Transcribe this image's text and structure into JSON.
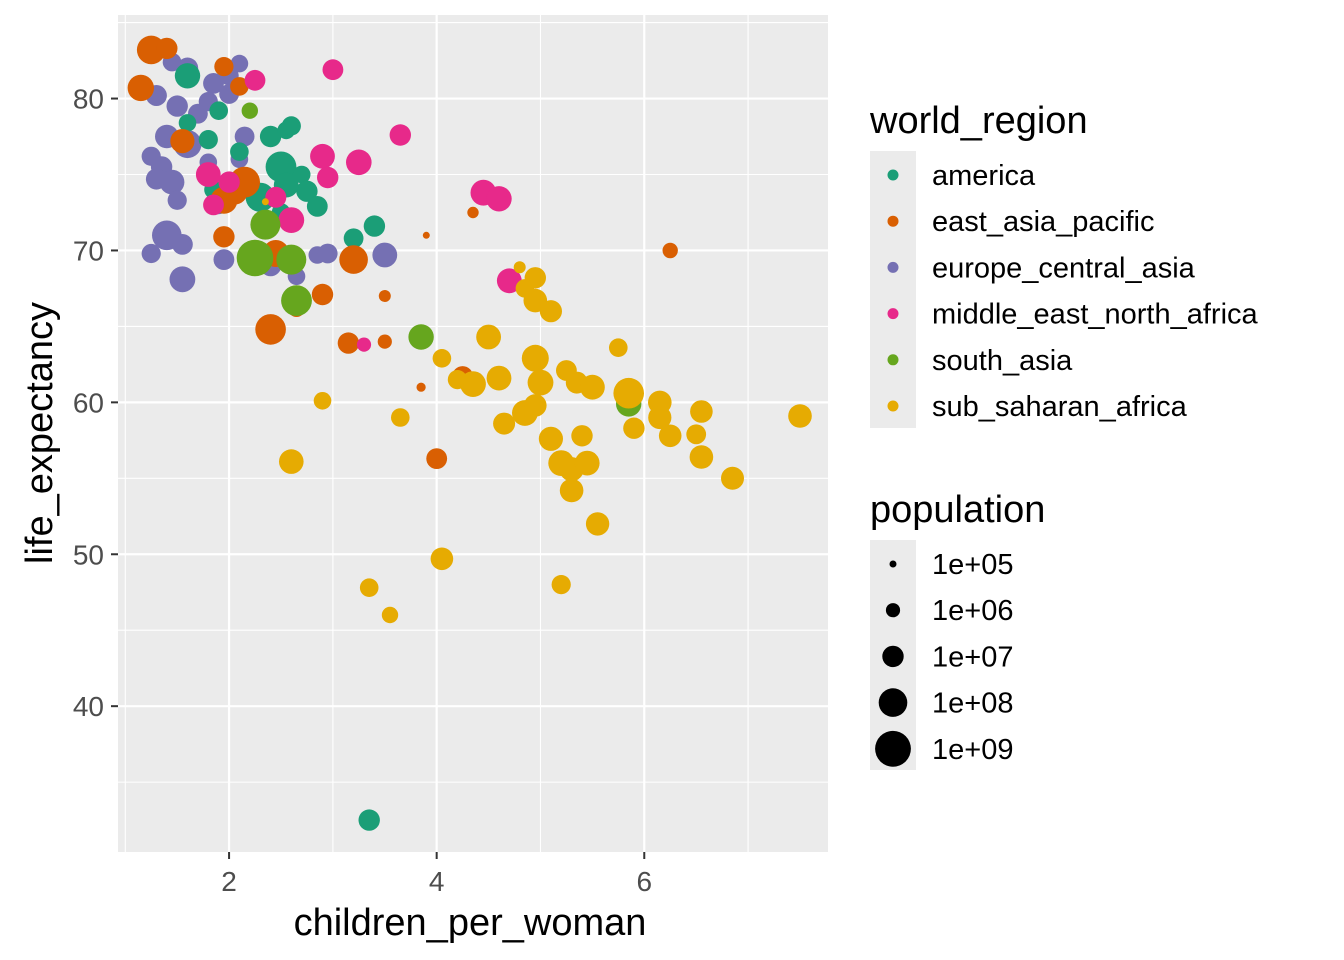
{
  "chart_data": {
    "type": "scatter",
    "title": "",
    "xlabel": "children_per_woman",
    "ylabel": "life_expectancy",
    "xlim": [
      0.93,
      7.77
    ],
    "ylim": [
      30.4,
      85.5
    ],
    "x_ticks": [
      2,
      4,
      6
    ],
    "y_ticks": [
      40,
      50,
      60,
      70,
      80
    ],
    "x_tick_labels": [
      "2",
      "4",
      "6"
    ],
    "y_tick_labels": [
      "40",
      "50",
      "60",
      "70",
      "80"
    ],
    "grid": true,
    "legend_position": "right",
    "color_legend": {
      "title": "world_region",
      "entries": [
        {
          "name": "america",
          "color": "#1B9E77"
        },
        {
          "name": "east_asia_pacific",
          "color": "#D95F02"
        },
        {
          "name": "europe_central_asia",
          "color": "#7570B3"
        },
        {
          "name": "middle_east_north_africa",
          "color": "#E7298A"
        },
        {
          "name": "south_asia",
          "color": "#66A61E"
        },
        {
          "name": "sub_saharan_africa",
          "color": "#E6AB02"
        }
      ]
    },
    "size_legend": {
      "title": "population",
      "entries": [
        {
          "label": "1e+05",
          "value": 100000
        },
        {
          "label": "1e+06",
          "value": 1000000
        },
        {
          "label": "1e+07",
          "value": 10000000
        },
        {
          "label": "1e+08",
          "value": 100000000
        },
        {
          "label": "1e+09",
          "value": 1000000000
        }
      ]
    },
    "series": [
      {
        "name": "europe_central_asia",
        "points": [
          [
            1.6,
            82.0,
            10000000.0
          ],
          [
            1.85,
            81.0,
            8000000.0
          ],
          [
            2.0,
            81.5,
            5000000.0
          ],
          [
            2.1,
            82.3,
            3000000.0
          ],
          [
            1.45,
            82.4,
            4000000.0
          ],
          [
            1.3,
            80.2,
            9000000.0
          ],
          [
            1.5,
            79.5,
            10000000.0
          ],
          [
            1.7,
            79.0,
            6000000.0
          ],
          [
            1.4,
            77.5,
            20000000.0
          ],
          [
            1.6,
            77.0,
            80000000.0
          ],
          [
            1.25,
            76.2,
            5000000.0
          ],
          [
            1.35,
            75.5,
            10000000.0
          ],
          [
            1.3,
            74.7,
            9000000.0
          ],
          [
            1.45,
            74.5,
            30000000.0
          ],
          [
            1.5,
            73.3,
            5000000.0
          ],
          [
            1.9,
            73.0,
            4000000.0
          ],
          [
            2.15,
            77.5,
            6000000.0
          ],
          [
            2.1,
            76.0,
            3000000.0
          ],
          [
            1.4,
            71.0,
            140000000.0
          ],
          [
            1.55,
            70.4,
            8000000.0
          ],
          [
            1.25,
            69.8,
            5000000.0
          ],
          [
            1.95,
            69.4,
            8000000.0
          ],
          [
            1.55,
            68.1,
            40000000.0
          ],
          [
            2.4,
            69.0,
            10000000.0
          ],
          [
            2.65,
            68.3,
            3000000.0
          ],
          [
            2.85,
            69.7,
            3000000.0
          ],
          [
            2.95,
            69.8,
            6000000.0
          ],
          [
            3.2,
            69.6,
            5000000.0
          ],
          [
            3.5,
            69.7,
            30000000.0
          ],
          [
            1.8,
            79.8,
            5000000.0
          ],
          [
            1.8,
            75.8,
            3000000.0
          ],
          [
            2.0,
            80.3,
            6000000.0
          ]
        ]
      },
      {
        "name": "america",
        "points": [
          [
            1.6,
            81.5,
            35000000.0
          ],
          [
            1.6,
            78.4,
            3000000.0
          ],
          [
            1.9,
            79.2,
            4000000.0
          ],
          [
            1.8,
            77.3,
            5000000.0
          ],
          [
            2.1,
            76.5,
            4000000.0
          ],
          [
            2.4,
            77.5,
            10000000.0
          ],
          [
            2.55,
            77.9,
            3000000.0
          ],
          [
            2.6,
            78.2,
            5000000.0
          ],
          [
            2.5,
            75.5,
            200000000.0
          ],
          [
            2.7,
            75.0,
            3000000.0
          ],
          [
            2.75,
            73.9,
            10000000.0
          ],
          [
            2.85,
            72.9,
            8000000.0
          ],
          [
            2.3,
            73.5,
            120000000.0
          ],
          [
            2.55,
            74.3,
            30000000.0
          ],
          [
            3.4,
            71.6,
            10000000.0
          ],
          [
            3.2,
            70.8,
            6000000.0
          ],
          [
            2.5,
            72.5,
            4000000.0
          ],
          [
            3.35,
            32.5,
            10000000.0
          ],
          [
            1.85,
            74.0,
            4000000.0
          ]
        ]
      },
      {
        "name": "east_asia_pacific",
        "points": [
          [
            1.25,
            83.2,
            100000000.0
          ],
          [
            1.4,
            83.3,
            10000000.0
          ],
          [
            1.15,
            80.7,
            50000000.0
          ],
          [
            1.55,
            77.2,
            25000000.0
          ],
          [
            1.95,
            82.1,
            5000000.0
          ],
          [
            2.1,
            80.8,
            4000000.0
          ],
          [
            2.15,
            74.5,
            200000000.0
          ],
          [
            2.05,
            73.9,
            60000000.0
          ],
          [
            1.95,
            73.3,
            60000000.0
          ],
          [
            1.95,
            70.9,
            10000000.0
          ],
          [
            2.4,
            64.8,
            190000000.0
          ],
          [
            2.45,
            69.8,
            60000000.0
          ],
          [
            2.65,
            66.2,
            3000000.0
          ],
          [
            2.9,
            67.1,
            10000000.0
          ],
          [
            3.15,
            63.9,
            10000000.0
          ],
          [
            3.2,
            69.4,
            100000000.0
          ],
          [
            3.5,
            67.0,
            500000.0
          ],
          [
            3.5,
            64.0,
            1000000.0
          ],
          [
            4.0,
            56.3,
            8000000.0
          ],
          [
            4.25,
            61.7,
            8000000.0
          ],
          [
            3.85,
            61.0,
            200000.0
          ],
          [
            3.9,
            71.0,
            100000.0
          ],
          [
            4.35,
            72.5,
            400000.0
          ],
          [
            6.25,
            70.0,
            1500000.0
          ]
        ]
      },
      {
        "name": "middle_east_north_africa",
        "points": [
          [
            2.25,
            81.2,
            8000000.0
          ],
          [
            3.0,
            81.9,
            8000000.0
          ],
          [
            3.65,
            77.6,
            10000000.0
          ],
          [
            2.9,
            76.2,
            30000000.0
          ],
          [
            3.25,
            75.8,
            38000000.0
          ],
          [
            2.95,
            74.8,
            10000000.0
          ],
          [
            1.8,
            75.0,
            30000000.0
          ],
          [
            1.85,
            73.0,
            8000000.0
          ],
          [
            2.45,
            73.5,
            9000000.0
          ],
          [
            2.6,
            72.0,
            40000000.0
          ],
          [
            4.45,
            73.8,
            40000000.0
          ],
          [
            4.6,
            73.4,
            35000000.0
          ],
          [
            4.7,
            68.0,
            30000000.0
          ],
          [
            3.3,
            63.8,
            1000000.0
          ],
          [
            2.0,
            74.5,
            10000000.0
          ]
        ]
      },
      {
        "name": "south_asia",
        "points": [
          [
            2.2,
            79.2,
            2000000.0
          ],
          [
            2.35,
            71.7,
            160000000.0
          ],
          [
            2.25,
            69.5,
            1300000000.0
          ],
          [
            2.6,
            69.4,
            160000000.0
          ],
          [
            2.65,
            66.7,
            200000000.0
          ],
          [
            3.85,
            64.3,
            36000000.0
          ],
          [
            5.85,
            59.9,
            35000000.0
          ]
        ]
      },
      {
        "name": "sub_saharan_africa",
        "points": [
          [
            2.35,
            73.2,
            100000.0
          ],
          [
            4.8,
            68.9,
            500000.0
          ],
          [
            4.95,
            68.2,
            10000000.0
          ],
          [
            4.85,
            67.5,
            4000000.0
          ],
          [
            4.95,
            66.7,
            20000000.0
          ],
          [
            5.1,
            66.0,
            13000000.0
          ],
          [
            4.5,
            64.3,
            30000000.0
          ],
          [
            4.05,
            62.9,
            4000000.0
          ],
          [
            4.2,
            61.5,
            5000000.0
          ],
          [
            4.35,
            61.2,
            40000000.0
          ],
          [
            4.6,
            61.6,
            30000000.0
          ],
          [
            4.95,
            62.9,
            60000000.0
          ],
          [
            5.0,
            61.3,
            40000000.0
          ],
          [
            5.25,
            62.1,
            8000000.0
          ],
          [
            5.35,
            61.3,
            12000000.0
          ],
          [
            5.5,
            61.0,
            30000000.0
          ],
          [
            5.75,
            63.6,
            4000000.0
          ],
          [
            5.85,
            60.6,
            190000000.0
          ],
          [
            5.9,
            58.3,
            10000000.0
          ],
          [
            6.15,
            60.0,
            20000000.0
          ],
          [
            6.15,
            59.0,
            18000000.0
          ],
          [
            6.25,
            57.8,
            15000000.0
          ],
          [
            6.5,
            57.9,
            6000000.0
          ],
          [
            6.55,
            59.4,
            15000000.0
          ],
          [
            6.55,
            56.4,
            20000000.0
          ],
          [
            6.85,
            55.0,
            17000000.0
          ],
          [
            7.5,
            59.1,
            20000000.0
          ],
          [
            5.1,
            57.6,
            25000000.0
          ],
          [
            5.2,
            56.0,
            40000000.0
          ],
          [
            5.3,
            55.6,
            25000000.0
          ],
          [
            5.4,
            57.8,
            10000000.0
          ],
          [
            5.45,
            56.0,
            30000000.0
          ],
          [
            5.3,
            54.2,
            20000000.0
          ],
          [
            4.85,
            59.3,
            40000000.0
          ],
          [
            4.95,
            59.8,
            15000000.0
          ],
          [
            4.65,
            58.6,
            12000000.0
          ],
          [
            5.55,
            52.0,
            19000000.0
          ],
          [
            3.65,
            59.0,
            4000000.0
          ],
          [
            2.9,
            60.1,
            3000000.0
          ],
          [
            2.6,
            56.1,
            27000000.0
          ],
          [
            4.05,
            49.7,
            15000000.0
          ],
          [
            3.35,
            47.8,
            4000000.0
          ],
          [
            3.55,
            46.0,
            2000000.0
          ],
          [
            5.2,
            48.0,
            5000000.0
          ]
        ]
      }
    ]
  }
}
